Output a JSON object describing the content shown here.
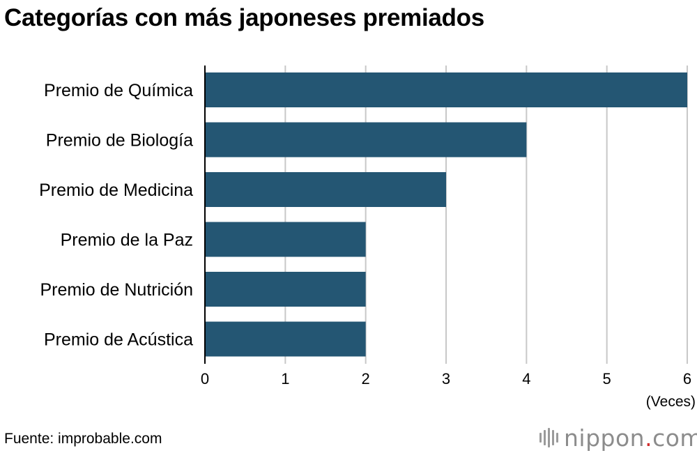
{
  "title": "Categorías con más japoneses premiados",
  "source": "Fuente: improbable.com",
  "logo": {
    "name": "nippon",
    "dot": ".",
    "domain": "com"
  },
  "colors": {
    "bar": "#245673",
    "grid": "#c8c8c8",
    "axis": "#000000"
  },
  "chart_data": {
    "type": "bar",
    "orientation": "horizontal",
    "categories": [
      "Premio de Química",
      "Premio de Biología",
      "Premio de Medicina",
      "Premio de la Paz",
      "Premio de Nutrición",
      "Premio de Acústica"
    ],
    "values": [
      6,
      4,
      3,
      2,
      2,
      2
    ],
    "xticks": [
      "0",
      "1",
      "2",
      "3",
      "4",
      "5",
      "6"
    ],
    "xlim": [
      0,
      6
    ],
    "unit": "(Veces)",
    "grid": true
  }
}
